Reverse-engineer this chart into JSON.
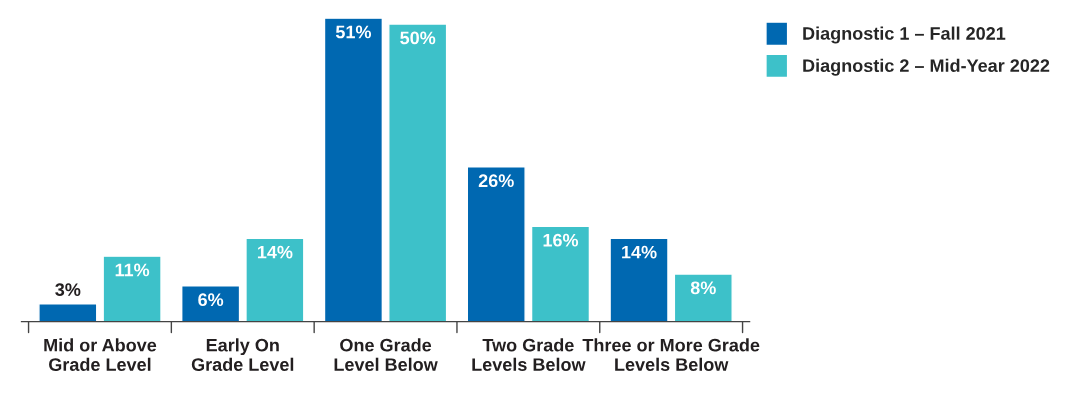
{
  "chart_data": {
    "type": "bar",
    "categories": [
      "Mid or Above\nGrade Level",
      "Early On\nGrade Level",
      "One Grade\nLevel Below",
      "Two Grade\nLevels Below",
      "Three or More Grade\nLevels Below"
    ],
    "series": [
      {
        "name": "Diagnostic 1 – Fall 2021",
        "color": "#0068b1",
        "values": [
          3,
          6,
          51,
          26,
          14
        ],
        "value_labels": [
          "3%",
          "6%",
          "51%",
          "26%",
          "14%"
        ]
      },
      {
        "name": "Diagnostic 2 – Mid-Year 2022",
        "color": "#3dc1c9",
        "values": [
          11,
          14,
          50,
          16,
          8
        ],
        "value_labels": [
          "11%",
          "14%",
          "50%",
          "16%",
          "8%"
        ]
      }
    ],
    "legend": "top right",
    "grid": false
  }
}
